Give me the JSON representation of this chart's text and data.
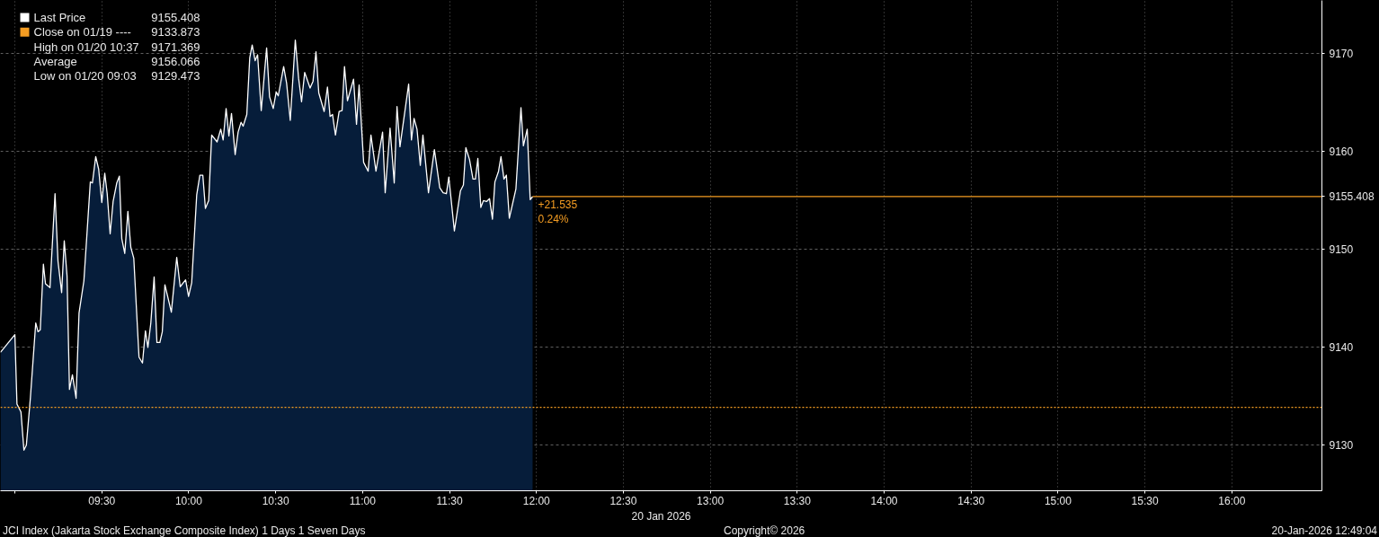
{
  "chart_data": {
    "type": "area",
    "x": [
      8.917,
      9.0,
      9.012,
      9.035,
      9.052,
      9.066,
      9.089,
      9.12,
      9.133,
      9.146,
      9.164,
      9.176,
      9.202,
      9.231,
      9.248,
      9.269,
      9.284,
      9.3,
      9.314,
      9.331,
      9.352,
      9.369,
      9.397,
      9.434,
      9.446,
      9.465,
      9.482,
      9.5,
      9.517,
      9.531,
      9.548,
      9.565,
      9.586,
      9.601,
      9.615,
      9.632,
      9.65,
      9.667,
      9.684,
      9.714,
      9.734,
      9.751,
      9.765,
      9.782,
      9.801,
      9.817,
      9.834,
      9.848,
      9.863,
      9.9,
      9.931,
      9.951,
      9.982,
      9.999,
      10.017,
      10.046,
      10.064,
      10.081,
      10.096,
      10.115,
      10.132,
      10.163,
      10.184,
      10.198,
      10.215,
      10.231,
      10.246,
      10.267,
      10.284,
      10.301,
      10.313,
      10.334,
      10.351,
      10.365,
      10.382,
      10.396,
      10.417,
      10.448,
      10.465,
      10.486,
      10.503,
      10.515,
      10.546,
      10.563,
      10.584,
      10.613,
      10.632,
      10.649,
      10.667,
      10.698,
      10.715,
      10.732,
      10.748,
      10.779,
      10.798,
      10.813,
      10.827,
      10.844,
      10.865,
      10.882,
      10.896,
      10.913,
      10.948,
      10.965,
      10.98,
      11.006,
      11.032,
      11.048,
      11.077,
      11.115,
      11.13,
      11.158,
      11.182,
      11.198,
      11.215,
      11.265,
      11.281,
      11.296,
      11.313,
      11.332,
      11.347,
      11.379,
      11.413,
      11.444,
      11.463,
      11.482,
      11.496,
      11.528,
      11.563,
      11.58,
      11.594,
      11.615,
      11.635,
      11.649,
      11.663,
      11.68,
      11.695,
      11.713,
      11.73,
      11.747,
      11.761,
      11.782,
      11.796,
      11.813,
      11.827,
      11.844,
      11.882,
      11.911,
      11.925,
      11.947,
      11.964,
      11.978
    ],
    "series": [
      {
        "name": "Last Price",
        "color": "#ffffff",
        "values": [
          9139.5,
          9141.3,
          9134.2,
          9133.4,
          9129.5,
          9130.0,
          9134.8,
          9142.5,
          9141.6,
          9141.8,
          9148.5,
          9146.5,
          9146.1,
          9155.7,
          9148.8,
          9145.6,
          9150.9,
          9147.3,
          9135.7,
          9137.2,
          9134.8,
          9143.5,
          9146.8,
          9156.9,
          9156.8,
          9159.5,
          9158.2,
          9154.8,
          9157.8,
          9155.7,
          9151.6,
          9154.9,
          9156.8,
          9157.5,
          9151.1,
          9149.6,
          9153.9,
          9150.2,
          9149.1,
          9139.0,
          9138.4,
          9141.7,
          9140.0,
          9142.5,
          9147.2,
          9140.5,
          9140.5,
          9141.6,
          9146.4,
          9143.6,
          9149.2,
          9146.2,
          9146.9,
          9145.2,
          9146.6,
          9155.6,
          9157.6,
          9157.6,
          9154.2,
          9155.0,
          9161.7,
          9161.0,
          9162.3,
          9161.2,
          9164.4,
          9161.6,
          9163.9,
          9159.7,
          9162.0,
          9163.0,
          9162.6,
          9163.8,
          9169.6,
          9170.9,
          9169.3,
          9169.9,
          9164.2,
          9170.6,
          9165.6,
          9164.4,
          9166.1,
          9165.7,
          9168.7,
          9167.0,
          9163.2,
          9171.4,
          9167.5,
          9165.1,
          9168.1,
          9166.5,
          9167.2,
          9170.2,
          9166.0,
          9164.1,
          9166.6,
          9163.6,
          9163.8,
          9161.7,
          9164.1,
          9164.2,
          9168.7,
          9165.2,
          9167.4,
          9162.8,
          9166.8,
          9158.9,
          9158.0,
          9161.7,
          9158.0,
          9162.0,
          9155.8,
          9162.4,
          9156.8,
          9164.6,
          9160.5,
          9166.9,
          9161.2,
          9163.4,
          9162.3,
          9158.6,
          9161.7,
          9155.8,
          9160.2,
          9156.3,
          9155.8,
          9155.7,
          9157.4,
          9151.9,
          9156.0,
          9156.6,
          9160.4,
          9159.2,
          9157.2,
          9157.2,
          9159.3,
          9154.3,
          9155.0,
          9154.9,
          9155.2,
          9153.1,
          9156.9,
          9158.0,
          9159.5,
          9157.2,
          9157.6,
          9153.2,
          9156.2,
          9164.5,
          9160.6,
          9162.3,
          9155.1,
          9155.4
        ]
      }
    ],
    "xlim": [
      8.917,
      16.518
    ],
    "ylim": [
      9125.35,
      9175.45
    ],
    "xticks": [
      {
        "value": 9,
        "label": null
      },
      {
        "value": 9.5,
        "label": "09:30"
      },
      {
        "value": 10,
        "label": "10:00"
      },
      {
        "value": 10.5,
        "label": "10:30"
      },
      {
        "value": 11,
        "label": "11:00"
      },
      {
        "value": 11.5,
        "label": "11:30"
      },
      {
        "value": 12,
        "label": "12:00"
      },
      {
        "value": 12.5,
        "label": "12:30"
      },
      {
        "value": 13,
        "label": "13:00"
      },
      {
        "value": 13.5,
        "label": "13:30"
      },
      {
        "value": 14,
        "label": "14:00"
      },
      {
        "value": 14.5,
        "label": "14:30"
      },
      {
        "value": 15,
        "label": "15:00"
      },
      {
        "value": 15.5,
        "label": "15:30"
      },
      {
        "value": 16,
        "label": "16:00"
      }
    ],
    "yticks": [
      9130,
      9140,
      9150,
      {
        "value": 9155.408,
        "label": "9155.408"
      },
      9160,
      9170
    ],
    "xlabel": "20 Jan 2026",
    "grid": true,
    "legend": "top left",
    "ref_lines": [
      {
        "axis": "y",
        "value": 9133.873,
        "label": "Close on 01/19 ----",
        "color": "#f59d22",
        "line_style": "dotted"
      },
      {
        "axis": "y",
        "value": 9155.408,
        "color": "#f59d22",
        "line_style": "solid"
      }
    ],
    "annotations": [
      "9155.408",
      "9133.873",
      "High on 01/20 10:37",
      "9171.369",
      "Average",
      "9156.066",
      "Low on 01/20 09:03",
      "9129.473",
      {
        "text": "+21.535",
        "x": 11.978,
        "y": 9155.408
      },
      {
        "text": "0.24%",
        "x": 11.978,
        "y": 9155.408
      },
      "JCI Index (Jakarta Stock Exchange Composite Index) 1 Days 1 Seven Days",
      "Copyright© 2026",
      "20-Jan-2026 12:49:04"
    ]
  }
}
